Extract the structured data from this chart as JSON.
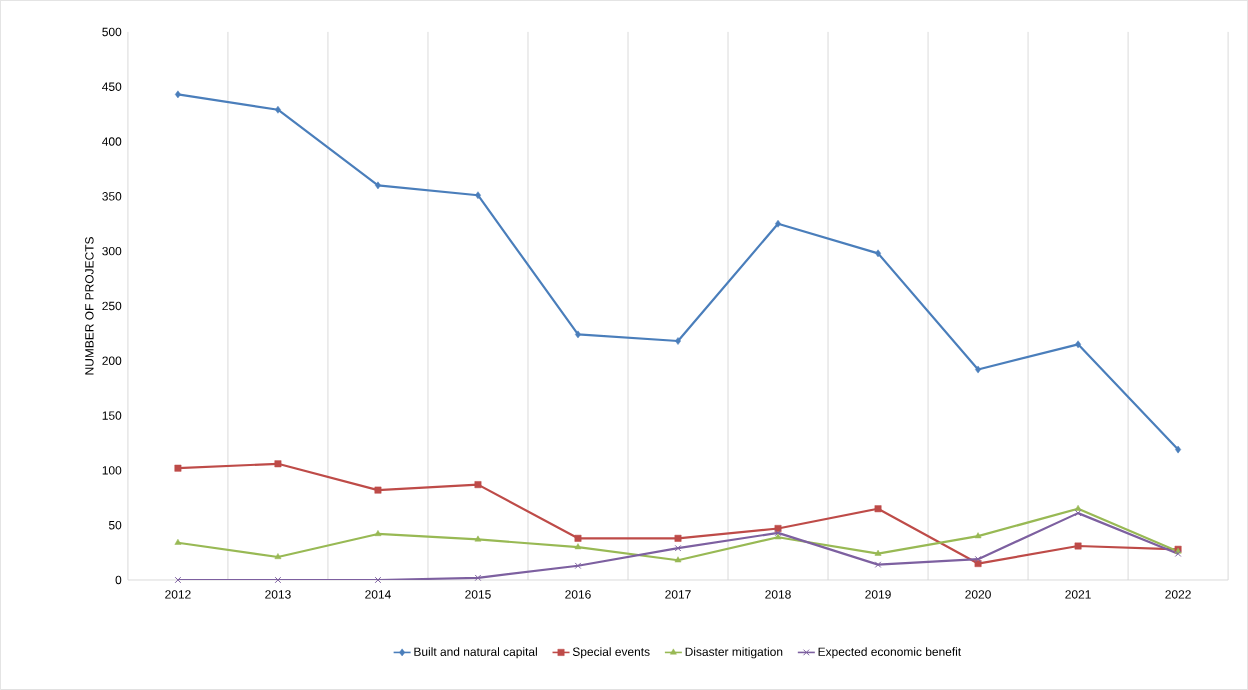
{
  "chart_data": {
    "type": "line",
    "ylabel": "NUMBER OF PROJECTS",
    "categories": [
      "2012",
      "2013",
      "2014",
      "2015",
      "2016",
      "2017",
      "2018",
      "2019",
      "2020",
      "2021",
      "2022"
    ],
    "series": [
      {
        "name": "Built and natural capital",
        "color": "#4a7ebb",
        "marker": "diamond",
        "values": [
          443,
          429,
          360,
          351,
          224,
          218,
          325,
          298,
          192,
          215,
          119
        ]
      },
      {
        "name": "Special events",
        "color": "#be4b48",
        "marker": "square",
        "values": [
          102,
          106,
          82,
          87,
          38,
          38,
          47,
          65,
          15,
          31,
          28
        ]
      },
      {
        "name": "Disaster mitigation",
        "color": "#98b954",
        "marker": "triangle",
        "values": [
          34,
          21,
          42,
          37,
          30,
          18,
          39,
          24,
          40,
          65,
          26
        ]
      },
      {
        "name": "Expected economic benefit",
        "color": "#7d60a0",
        "marker": "cross",
        "values": [
          0,
          0,
          0,
          2,
          13,
          29,
          43,
          14,
          19,
          61,
          24
        ]
      }
    ],
    "ylim": [
      0,
      500
    ],
    "yticks": [
      0,
      50,
      100,
      150,
      200,
      250,
      300,
      350,
      400,
      450,
      500
    ],
    "grid": "x",
    "legend": "bottom",
    "line_style": "solid"
  }
}
